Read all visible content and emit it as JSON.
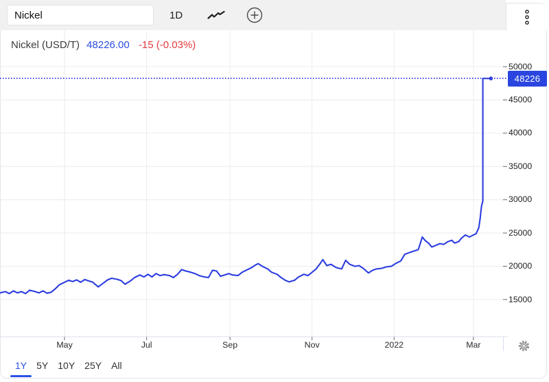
{
  "toolbar": {
    "search_value": "Nickel",
    "interval_label": "1D"
  },
  "icons": {
    "chart_type": "line-squiggle-icon",
    "add": "plus-circle-icon",
    "menu": "kebab-menu-icon",
    "settings": "gear-icon"
  },
  "header": {
    "title": "Nickel (USD/T)",
    "price": "48226.00",
    "change": "-15 (-0.03%)"
  },
  "price_axis_label": "48226",
  "range_tabs": [
    {
      "label": "1Y",
      "active": true
    },
    {
      "label": "5Y",
      "active": false
    },
    {
      "label": "10Y",
      "active": false
    },
    {
      "label": "25Y",
      "active": false
    },
    {
      "label": "All",
      "active": false
    }
  ],
  "colors": {
    "accent_blue": "#2b46e0",
    "tab_blue": "#2b50e8",
    "negative_red": "#e23a3e",
    "line_blue": "#2b3de0",
    "grid": "#ececee",
    "axis_line": "#d9dcec",
    "tick": "#666666",
    "toolbar_bg": "#f1f1f2",
    "card_border": "#e4e4e7"
  },
  "chart_data": {
    "type": "line",
    "title": "Nickel (USD/T)",
    "unit": "USD/T",
    "last_price": 48226.0,
    "change": -15,
    "change_pct": -0.03,
    "grid": true,
    "legend_position": "none",
    "x_domain": [
      "2021-03-14",
      "2022-03-23"
    ],
    "ylim": [
      9400,
      55000
    ],
    "y_ticks": [
      15000,
      20000,
      25000,
      30000,
      35000,
      40000,
      45000,
      50000
    ],
    "x_ticks": [
      {
        "date": "2021-05-01",
        "label": "May"
      },
      {
        "date": "2021-07-01",
        "label": "Jul"
      },
      {
        "date": "2021-09-01",
        "label": "Sep"
      },
      {
        "date": "2021-11-01",
        "label": "Nov"
      },
      {
        "date": "2022-01-01",
        "label": "2022"
      },
      {
        "date": "2022-03-01",
        "label": "Mar"
      }
    ],
    "series": [
      {
        "name": "Nickel (USD/T)",
        "points": [
          [
            "2021-03-14",
            16000
          ],
          [
            "2021-03-18",
            16200
          ],
          [
            "2021-03-21",
            15900
          ],
          [
            "2021-03-24",
            16300
          ],
          [
            "2021-03-27",
            16000
          ],
          [
            "2021-03-30",
            16200
          ],
          [
            "2021-04-02",
            15900
          ],
          [
            "2021-04-05",
            16400
          ],
          [
            "2021-04-09",
            16200
          ],
          [
            "2021-04-12",
            16000
          ],
          [
            "2021-04-15",
            16300
          ],
          [
            "2021-04-18",
            15950
          ],
          [
            "2021-04-21",
            16100
          ],
          [
            "2021-04-24",
            16600
          ],
          [
            "2021-04-27",
            17200
          ],
          [
            "2021-05-01",
            17600
          ],
          [
            "2021-05-04",
            17900
          ],
          [
            "2021-05-07",
            17700
          ],
          [
            "2021-05-10",
            17950
          ],
          [
            "2021-05-13",
            17600
          ],
          [
            "2021-05-16",
            18000
          ],
          [
            "2021-05-19",
            17800
          ],
          [
            "2021-05-22",
            17600
          ],
          [
            "2021-05-26",
            16900
          ],
          [
            "2021-05-30",
            17500
          ],
          [
            "2021-06-02",
            17950
          ],
          [
            "2021-06-05",
            18200
          ],
          [
            "2021-06-09",
            18050
          ],
          [
            "2021-06-12",
            17850
          ],
          [
            "2021-06-15",
            17300
          ],
          [
            "2021-06-19",
            17800
          ],
          [
            "2021-06-22",
            18300
          ],
          [
            "2021-06-26",
            18700
          ],
          [
            "2021-06-29",
            18400
          ],
          [
            "2021-07-02",
            18800
          ],
          [
            "2021-07-05",
            18400
          ],
          [
            "2021-07-08",
            18900
          ],
          [
            "2021-07-11",
            18600
          ],
          [
            "2021-07-14",
            18750
          ],
          [
            "2021-07-18",
            18600
          ],
          [
            "2021-07-21",
            18300
          ],
          [
            "2021-07-24",
            18800
          ],
          [
            "2021-07-27",
            19500
          ],
          [
            "2021-07-30",
            19300
          ],
          [
            "2021-08-02",
            19150
          ],
          [
            "2021-08-06",
            18900
          ],
          [
            "2021-08-09",
            18600
          ],
          [
            "2021-08-13",
            18400
          ],
          [
            "2021-08-16",
            18300
          ],
          [
            "2021-08-19",
            19400
          ],
          [
            "2021-08-22",
            19300
          ],
          [
            "2021-08-25",
            18500
          ],
          [
            "2021-08-28",
            18700
          ],
          [
            "2021-08-31",
            18900
          ],
          [
            "2021-09-03",
            18700
          ],
          [
            "2021-09-07",
            18600
          ],
          [
            "2021-09-10",
            19100
          ],
          [
            "2021-09-14",
            19500
          ],
          [
            "2021-09-17",
            19800
          ],
          [
            "2021-09-20",
            20200
          ],
          [
            "2021-09-22",
            20400
          ],
          [
            "2021-09-25",
            20000
          ],
          [
            "2021-09-29",
            19600
          ],
          [
            "2021-10-02",
            19100
          ],
          [
            "2021-10-06",
            18800
          ],
          [
            "2021-10-09",
            18300
          ],
          [
            "2021-10-12",
            17900
          ],
          [
            "2021-10-15",
            17650
          ],
          [
            "2021-10-19",
            17900
          ],
          [
            "2021-10-22",
            18400
          ],
          [
            "2021-10-26",
            18800
          ],
          [
            "2021-10-29",
            18600
          ],
          [
            "2021-11-01",
            19100
          ],
          [
            "2021-11-04",
            19600
          ],
          [
            "2021-11-07",
            20400
          ],
          [
            "2021-11-09",
            21000
          ],
          [
            "2021-11-12",
            20100
          ],
          [
            "2021-11-15",
            20300
          ],
          [
            "2021-11-19",
            19800
          ],
          [
            "2021-11-23",
            19600
          ],
          [
            "2021-11-26",
            20900
          ],
          [
            "2021-11-29",
            20300
          ],
          [
            "2021-12-03",
            20000
          ],
          [
            "2021-12-06",
            20100
          ],
          [
            "2021-12-09",
            19700
          ],
          [
            "2021-12-13",
            19000
          ],
          [
            "2021-12-16",
            19400
          ],
          [
            "2021-12-19",
            19600
          ],
          [
            "2021-12-23",
            19700
          ],
          [
            "2021-12-26",
            19900
          ],
          [
            "2021-12-30",
            20000
          ],
          [
            "2022-01-02",
            20400
          ],
          [
            "2022-01-06",
            20800
          ],
          [
            "2022-01-09",
            21800
          ],
          [
            "2022-01-13",
            22100
          ],
          [
            "2022-01-16",
            22300
          ],
          [
            "2022-01-19",
            22500
          ],
          [
            "2022-01-22",
            24400
          ],
          [
            "2022-01-24",
            23900
          ],
          [
            "2022-01-27",
            23400
          ],
          [
            "2022-01-29",
            22900
          ],
          [
            "2022-01-31",
            23050
          ],
          [
            "2022-02-04",
            23400
          ],
          [
            "2022-02-07",
            23300
          ],
          [
            "2022-02-10",
            23700
          ],
          [
            "2022-02-13",
            23900
          ],
          [
            "2022-02-15",
            23500
          ],
          [
            "2022-02-18",
            23700
          ],
          [
            "2022-02-20",
            24200
          ],
          [
            "2022-02-23",
            24700
          ],
          [
            "2022-02-26",
            24400
          ],
          [
            "2022-02-28",
            24600
          ],
          [
            "2022-03-03",
            24900
          ],
          [
            "2022-03-05",
            25800
          ],
          [
            "2022-03-06",
            27200
          ],
          [
            "2022-03-07",
            29000
          ],
          [
            "2022-03-08",
            29800
          ],
          [
            "2022-03-08",
            48226
          ],
          [
            "2022-03-11",
            48226
          ],
          [
            "2022-03-14",
            48226
          ]
        ]
      }
    ]
  }
}
